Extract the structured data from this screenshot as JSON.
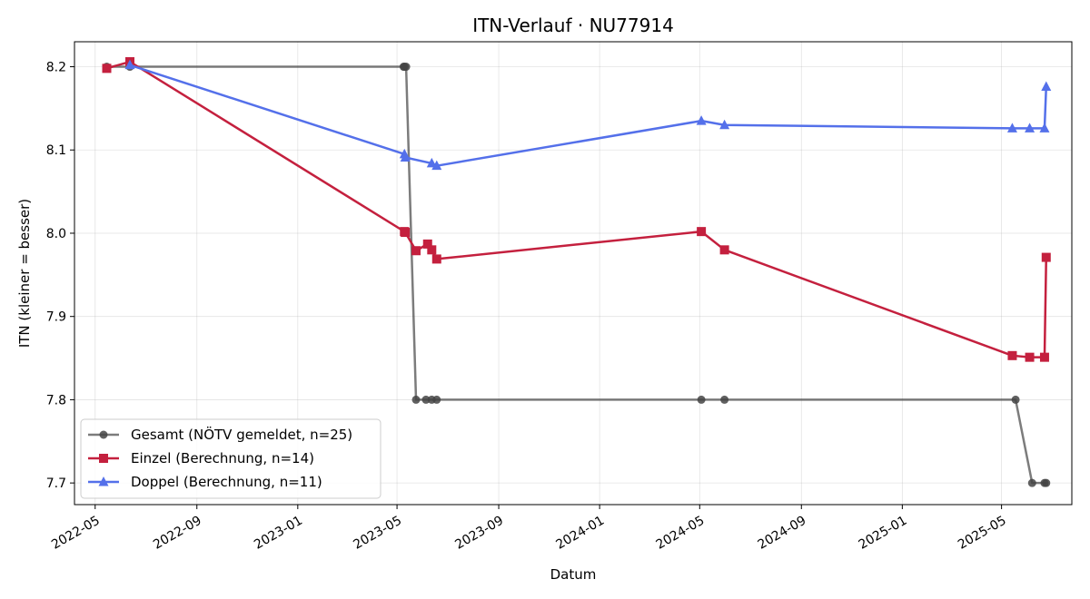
{
  "chart_data": {
    "type": "line",
    "title": "ITN-Verlauf · NU77914",
    "xlabel": "Datum",
    "ylabel": "ITN  (kleiner = besser)",
    "xlim": [
      "2022-04-06",
      "2025-07-25"
    ],
    "ylim": [
      7.674,
      8.23
    ],
    "x_ticks": [
      "2022-05",
      "2022-09",
      "2023-01",
      "2023-05",
      "2023-09",
      "2024-01",
      "2024-05",
      "2024-09",
      "2025-01",
      "2025-05"
    ],
    "y_ticks": [
      7.7,
      7.8,
      7.9,
      8.0,
      8.1,
      8.2
    ],
    "grid": true,
    "legend_position": "lower-left",
    "series": [
      {
        "name": "Gesamt (NÖTV gemeldet, n=25)",
        "color": "#444444",
        "marker": "circle",
        "points": [
          [
            "2022-05-15",
            8.2
          ],
          [
            "2022-06-12",
            8.2
          ],
          [
            "2023-05-09",
            8.2
          ],
          [
            "2023-05-10",
            8.2
          ],
          [
            "2023-05-12",
            8.2
          ],
          [
            "2023-05-24",
            7.8
          ],
          [
            "2023-06-05",
            7.8
          ],
          [
            "2023-06-12",
            7.8
          ],
          [
            "2023-06-18",
            7.8
          ],
          [
            "2024-05-03",
            7.8
          ],
          [
            "2024-05-31",
            7.8
          ],
          [
            "2025-05-18",
            7.8
          ],
          [
            "2025-06-07",
            7.7
          ],
          [
            "2025-06-22",
            7.7
          ],
          [
            "2025-06-24",
            7.7
          ]
        ]
      },
      {
        "name": "Einzel (Berechnung, n=14)",
        "color": "#c4203e",
        "marker": "square",
        "points": [
          [
            "2022-05-15",
            8.198
          ],
          [
            "2022-06-12",
            8.206
          ],
          [
            "2023-05-10",
            8.002
          ],
          [
            "2023-05-11",
            8.001
          ],
          [
            "2023-05-24",
            7.979
          ],
          [
            "2023-06-07",
            7.987
          ],
          [
            "2023-06-12",
            7.98
          ],
          [
            "2023-06-18",
            7.969
          ],
          [
            "2024-05-03",
            8.002
          ],
          [
            "2024-05-31",
            7.98
          ],
          [
            "2025-05-14",
            7.853
          ],
          [
            "2025-06-04",
            7.851
          ],
          [
            "2025-06-22",
            7.851
          ],
          [
            "2025-06-24",
            7.971
          ]
        ]
      },
      {
        "name": "Doppel (Berechnung, n=11)",
        "color": "#5470ea",
        "marker": "triangle",
        "points": [
          [
            "2022-06-12",
            8.202
          ],
          [
            "2023-05-10",
            8.095
          ],
          [
            "2023-05-11",
            8.091
          ],
          [
            "2023-06-12",
            8.084
          ],
          [
            "2023-06-18",
            8.081
          ],
          [
            "2024-05-03",
            8.135
          ],
          [
            "2024-05-31",
            8.13
          ],
          [
            "2025-05-14",
            8.126
          ],
          [
            "2025-06-04",
            8.126
          ],
          [
            "2025-06-22",
            8.126
          ],
          [
            "2025-06-24",
            8.176
          ]
        ]
      }
    ]
  }
}
